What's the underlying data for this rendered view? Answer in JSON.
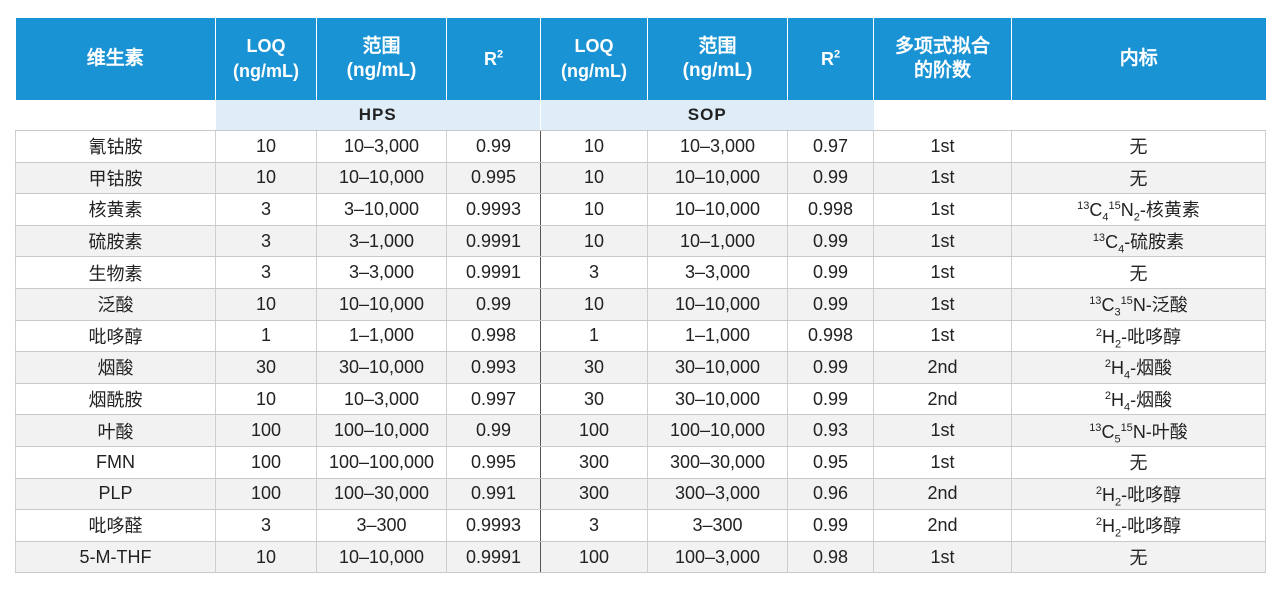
{
  "header": {
    "vitamin": "维生素",
    "loq_label": "LOQ",
    "loq_unit": "(ng/mL)",
    "range_label": "范围",
    "range_unit": "(ng/mL)",
    "r2_base": "R",
    "r2_sup": "2",
    "fit_line1": "多项式拟合",
    "fit_line2": "的阶数",
    "internal_std": "内标"
  },
  "groups": {
    "hps": "HPS",
    "sop": "SOP"
  },
  "rows": [
    {
      "name": "氰钴胺",
      "hps_loq": "10",
      "hps_range": "10–3,000",
      "hps_r2": "0.99",
      "sop_loq": "10",
      "sop_range": "10–3,000",
      "sop_r2": "0.97",
      "fit": "1st",
      "is": [
        {
          "t": "n",
          "v": "无"
        }
      ]
    },
    {
      "name": "甲钴胺",
      "hps_loq": "10",
      "hps_range": "10–10,000",
      "hps_r2": "0.995",
      "sop_loq": "10",
      "sop_range": "10–10,000",
      "sop_r2": "0.99",
      "fit": "1st",
      "is": [
        {
          "t": "n",
          "v": "无"
        }
      ]
    },
    {
      "name": "核黄素",
      "hps_loq": "3",
      "hps_range": "3–10,000",
      "hps_r2": "0.9993",
      "sop_loq": "10",
      "sop_range": "10–10,000",
      "sop_r2": "0.998",
      "fit": "1st",
      "is": [
        {
          "t": "sup",
          "v": "13"
        },
        {
          "t": "n",
          "v": "C"
        },
        {
          "t": "sub",
          "v": "4"
        },
        {
          "t": "sup",
          "v": "15"
        },
        {
          "t": "n",
          "v": "N"
        },
        {
          "t": "sub",
          "v": "2"
        },
        {
          "t": "n",
          "v": "-核黄素"
        }
      ]
    },
    {
      "name": "硫胺素",
      "hps_loq": "3",
      "hps_range": "3–1,000",
      "hps_r2": "0.9991",
      "sop_loq": "10",
      "sop_range": "10–1,000",
      "sop_r2": "0.99",
      "fit": "1st",
      "is": [
        {
          "t": "sup",
          "v": "13"
        },
        {
          "t": "n",
          "v": "C"
        },
        {
          "t": "sub",
          "v": "4"
        },
        {
          "t": "n",
          "v": "-硫胺素"
        }
      ]
    },
    {
      "name": "生物素",
      "hps_loq": "3",
      "hps_range": "3–3,000",
      "hps_r2": "0.9991",
      "sop_loq": "3",
      "sop_range": "3–3,000",
      "sop_r2": "0.99",
      "fit": "1st",
      "is": [
        {
          "t": "n",
          "v": "无"
        }
      ]
    },
    {
      "name": "泛酸",
      "hps_loq": "10",
      "hps_range": "10–10,000",
      "hps_r2": "0.99",
      "sop_loq": "10",
      "sop_range": "10–10,000",
      "sop_r2": "0.99",
      "fit": "1st",
      "is": [
        {
          "t": "sup",
          "v": "13"
        },
        {
          "t": "n",
          "v": "C"
        },
        {
          "t": "sub",
          "v": "3"
        },
        {
          "t": "sup",
          "v": "15"
        },
        {
          "t": "n",
          "v": "N-泛酸"
        }
      ]
    },
    {
      "name": "吡哆醇",
      "hps_loq": "1",
      "hps_range": "1–1,000",
      "hps_r2": "0.998",
      "sop_loq": "1",
      "sop_range": "1–1,000",
      "sop_r2": "0.998",
      "fit": "1st",
      "is": [
        {
          "t": "sup",
          "v": "2"
        },
        {
          "t": "n",
          "v": "H"
        },
        {
          "t": "sub",
          "v": "2"
        },
        {
          "t": "n",
          "v": "-吡哆醇"
        }
      ]
    },
    {
      "name": "烟酸",
      "hps_loq": "30",
      "hps_range": "30–10,000",
      "hps_r2": "0.993",
      "sop_loq": "30",
      "sop_range": "30–10,000",
      "sop_r2": "0.99",
      "fit": "2nd",
      "is": [
        {
          "t": "sup",
          "v": "2"
        },
        {
          "t": "n",
          "v": "H"
        },
        {
          "t": "sub",
          "v": "4"
        },
        {
          "t": "n",
          "v": "-烟酸"
        }
      ]
    },
    {
      "name": "烟酰胺",
      "hps_loq": "10",
      "hps_range": "10–3,000",
      "hps_r2": "0.997",
      "sop_loq": "30",
      "sop_range": "30–10,000",
      "sop_r2": "0.99",
      "fit": "2nd",
      "is": [
        {
          "t": "sup",
          "v": "2"
        },
        {
          "t": "n",
          "v": "H"
        },
        {
          "t": "sub",
          "v": "4"
        },
        {
          "t": "n",
          "v": "-烟酸"
        }
      ]
    },
    {
      "name": "叶酸",
      "hps_loq": "100",
      "hps_range": "100–10,000",
      "hps_r2": "0.99",
      "sop_loq": "100",
      "sop_range": "100–10,000",
      "sop_r2": "0.93",
      "fit": "1st",
      "is": [
        {
          "t": "sup",
          "v": "13"
        },
        {
          "t": "n",
          "v": "C"
        },
        {
          "t": "sub",
          "v": "5"
        },
        {
          "t": "sup",
          "v": "15"
        },
        {
          "t": "n",
          "v": "N-叶酸"
        }
      ]
    },
    {
      "name": "FMN",
      "hps_loq": "100",
      "hps_range": "100–100,000",
      "hps_r2": "0.995",
      "sop_loq": "300",
      "sop_range": "300–30,000",
      "sop_r2": "0.95",
      "fit": "1st",
      "is": [
        {
          "t": "n",
          "v": "无"
        }
      ]
    },
    {
      "name": "PLP",
      "hps_loq": "100",
      "hps_range": "100–30,000",
      "hps_r2": "0.991",
      "sop_loq": "300",
      "sop_range": "300–3,000",
      "sop_r2": "0.96",
      "fit": "2nd",
      "is": [
        {
          "t": "sup",
          "v": "2"
        },
        {
          "t": "n",
          "v": "H"
        },
        {
          "t": "sub",
          "v": "2"
        },
        {
          "t": "n",
          "v": "-吡哆醇"
        }
      ]
    },
    {
      "name": "吡哆醛",
      "hps_loq": "3",
      "hps_range": "3–300",
      "hps_r2": "0.9993",
      "sop_loq": "3",
      "sop_range": "3–300",
      "sop_r2": "0.99",
      "fit": "2nd",
      "is": [
        {
          "t": "sup",
          "v": "2"
        },
        {
          "t": "n",
          "v": "H"
        },
        {
          "t": "sub",
          "v": "2"
        },
        {
          "t": "n",
          "v": "-吡哆醇"
        }
      ]
    },
    {
      "name": "5-M-THF",
      "hps_loq": "10",
      "hps_range": "10–10,000",
      "hps_r2": "0.9991",
      "sop_loq": "100",
      "sop_range": "100–3,000",
      "sop_r2": "0.98",
      "fit": "1st",
      "is": [
        {
          "t": "n",
          "v": "无"
        }
      ]
    }
  ],
  "colors": {
    "header_bg": "#1a93d4",
    "group_bg": "#deedf8",
    "alt_row_bg": "#f2f2f2"
  }
}
